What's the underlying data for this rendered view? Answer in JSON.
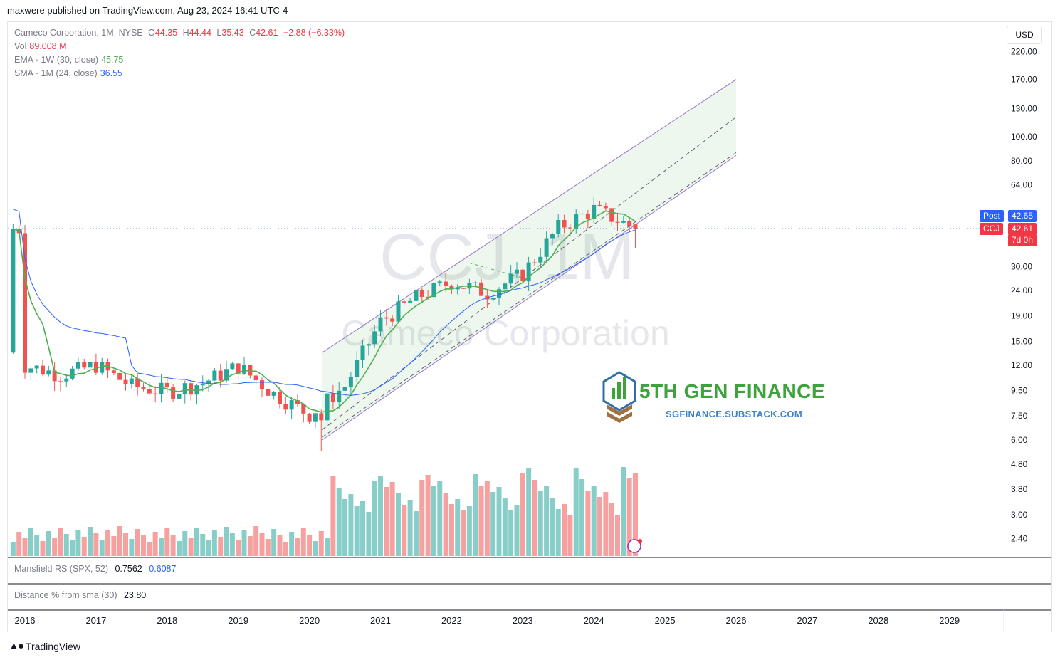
{
  "header": {
    "publisher": "maxwere published on TradingView.com, Aug 23, 2024 16:41 UTC-4"
  },
  "legend": {
    "symbol": "Cameco Corporation, 1M, NYSE",
    "o_label": "O",
    "o": "44.35",
    "h_label": "H",
    "h": "44.44",
    "l_label": "L",
    "l": "35.43",
    "c_label": "C",
    "c": "42.61",
    "change": "−2.88 (−6.33%)",
    "vol_label": "Vol",
    "vol": "89.008 M",
    "ema_label": "EMA · 1W (30, close)",
    "ema": "45.75",
    "sma_label": "SMA · 1M (24, close)",
    "sma": "36.55"
  },
  "watermark": {
    "ticker": "CCJ, 1M",
    "name": "Cameco Corporation"
  },
  "currency": "USD",
  "price_tags": {
    "post_label": "Post",
    "post_value": "42.65",
    "symbol_label": "CCJ",
    "symbol_value": "42.61",
    "countdown": "7d 0h"
  },
  "branding": {
    "name": "5TH GEN FINANCE",
    "url": "SGFINANCE.SUBSTACK.COM"
  },
  "panes": {
    "rs_label": "Mansfield RS (SPX, 52)",
    "rs_v1": "0.7562",
    "rs_v2": "0.6087",
    "dist_label": "Distance % from sma (30)",
    "dist_v": "23.80"
  },
  "footer": {
    "brand": "TradingView"
  },
  "colors": {
    "up": "#26a69a",
    "down": "#ef5350",
    "ema": "#4caf50",
    "sma": "#2962ff",
    "channel": "#9575cd"
  },
  "chart_data": {
    "type": "candlestick",
    "y_scale": "log",
    "y_ticks": [
      "220.00",
      "170.00",
      "130.00",
      "100.00",
      "80.00",
      "64.00",
      "30.00",
      "24.00",
      "19.00",
      "15.00",
      "12.00",
      "9.50",
      "7.50",
      "6.00",
      "4.80",
      "3.80",
      "3.00",
      "2.40"
    ],
    "x_ticks": [
      "2016",
      "2017",
      "2018",
      "2019",
      "2020",
      "2021",
      "2022",
      "2023",
      "2024",
      "2025",
      "2026",
      "2027",
      "2028",
      "2029"
    ],
    "last_price": 42.61,
    "candles_ohlc_monthly_approx": [
      [
        2016.0,
        13.2,
        13.5,
        11.5,
        12.0
      ],
      [
        2016.5,
        12.0,
        12.6,
        10.5,
        11.0
      ],
      [
        2017.0,
        10.2,
        12.5,
        9.8,
        12.0
      ],
      [
        2017.5,
        12.0,
        12.3,
        9.2,
        9.9
      ],
      [
        2018.0,
        10.0,
        11.5,
        8.0,
        9.4
      ],
      [
        2018.5,
        9.4,
        11.2,
        8.6,
        10.2
      ],
      [
        2019.0,
        10.2,
        12.8,
        9.7,
        11.9
      ],
      [
        2019.5,
        11.9,
        12.2,
        8.5,
        9.2
      ],
      [
        2020.0,
        9.2,
        9.6,
        5.4,
        7.6
      ],
      [
        2020.5,
        7.6,
        12.0,
        7.5,
        9.9
      ],
      [
        2021.0,
        9.9,
        19.0,
        9.8,
        18.0
      ],
      [
        2021.5,
        18.0,
        28.0,
        15.5,
        22.5
      ],
      [
        2022.0,
        22.5,
        31.0,
        18.5,
        26.0
      ],
      [
        2022.5,
        26.0,
        30.0,
        21.5,
        23.5
      ],
      [
        2023.0,
        23.5,
        30.0,
        22.0,
        28.0
      ],
      [
        2023.5,
        28.0,
        45.0,
        27.0,
        43.0
      ],
      [
        2024.0,
        43.0,
        56.0,
        40.0,
        51.0
      ],
      [
        2024.6,
        44.35,
        44.44,
        35.43,
        42.61
      ]
    ]
  }
}
